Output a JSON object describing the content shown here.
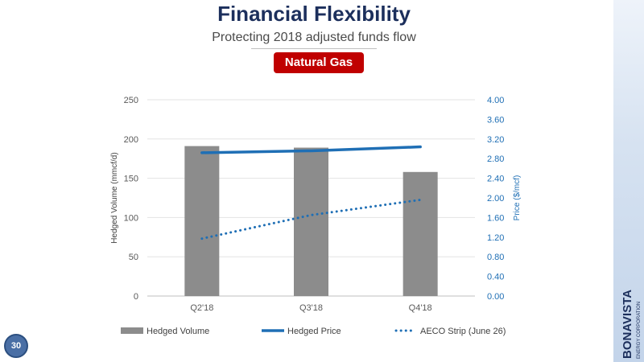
{
  "slide": {
    "title": "Financial Flexibility",
    "subtitle": "Protecting 2018 adjusted funds flow",
    "badge": "Natural Gas",
    "page_number": "30",
    "brand_name": "BONAVISTA",
    "brand_tagline": "ENERGY CORPORATION"
  },
  "colors": {
    "title": "#1c2f5c",
    "badge": "#c00000",
    "bar": "#8c8c8c",
    "line": "#1f6fb5"
  },
  "chart_data": {
    "type": "bar",
    "categories": [
      "Q2'18",
      "Q3'18",
      "Q4'18"
    ],
    "series": [
      {
        "name": "Hedged Volume",
        "type": "bar",
        "axis": "left",
        "values": [
          191,
          189,
          158
        ]
      },
      {
        "name": "Hedged Price",
        "type": "line",
        "axis": "right",
        "style": "solid",
        "values": [
          2.92,
          2.96,
          3.04
        ]
      },
      {
        "name": "AECO Strip (June 26)",
        "type": "line",
        "axis": "right",
        "style": "dotted",
        "values": [
          1.17,
          1.65,
          1.96
        ]
      }
    ],
    "ylabel": "Hedged Volume (mmcf/d)",
    "y2label": "Price ($/mcf)",
    "ylim": [
      0,
      250
    ],
    "y_ticks": [
      "0",
      "50",
      "100",
      "150",
      "200",
      "250"
    ],
    "y2lim": [
      0,
      4
    ],
    "y2_ticks": [
      "0.00",
      "0.40",
      "0.80",
      "1.20",
      "1.60",
      "2.00",
      "2.40",
      "2.80",
      "3.20",
      "3.60",
      "4.00"
    ],
    "grid": true,
    "legend": "bottom"
  }
}
